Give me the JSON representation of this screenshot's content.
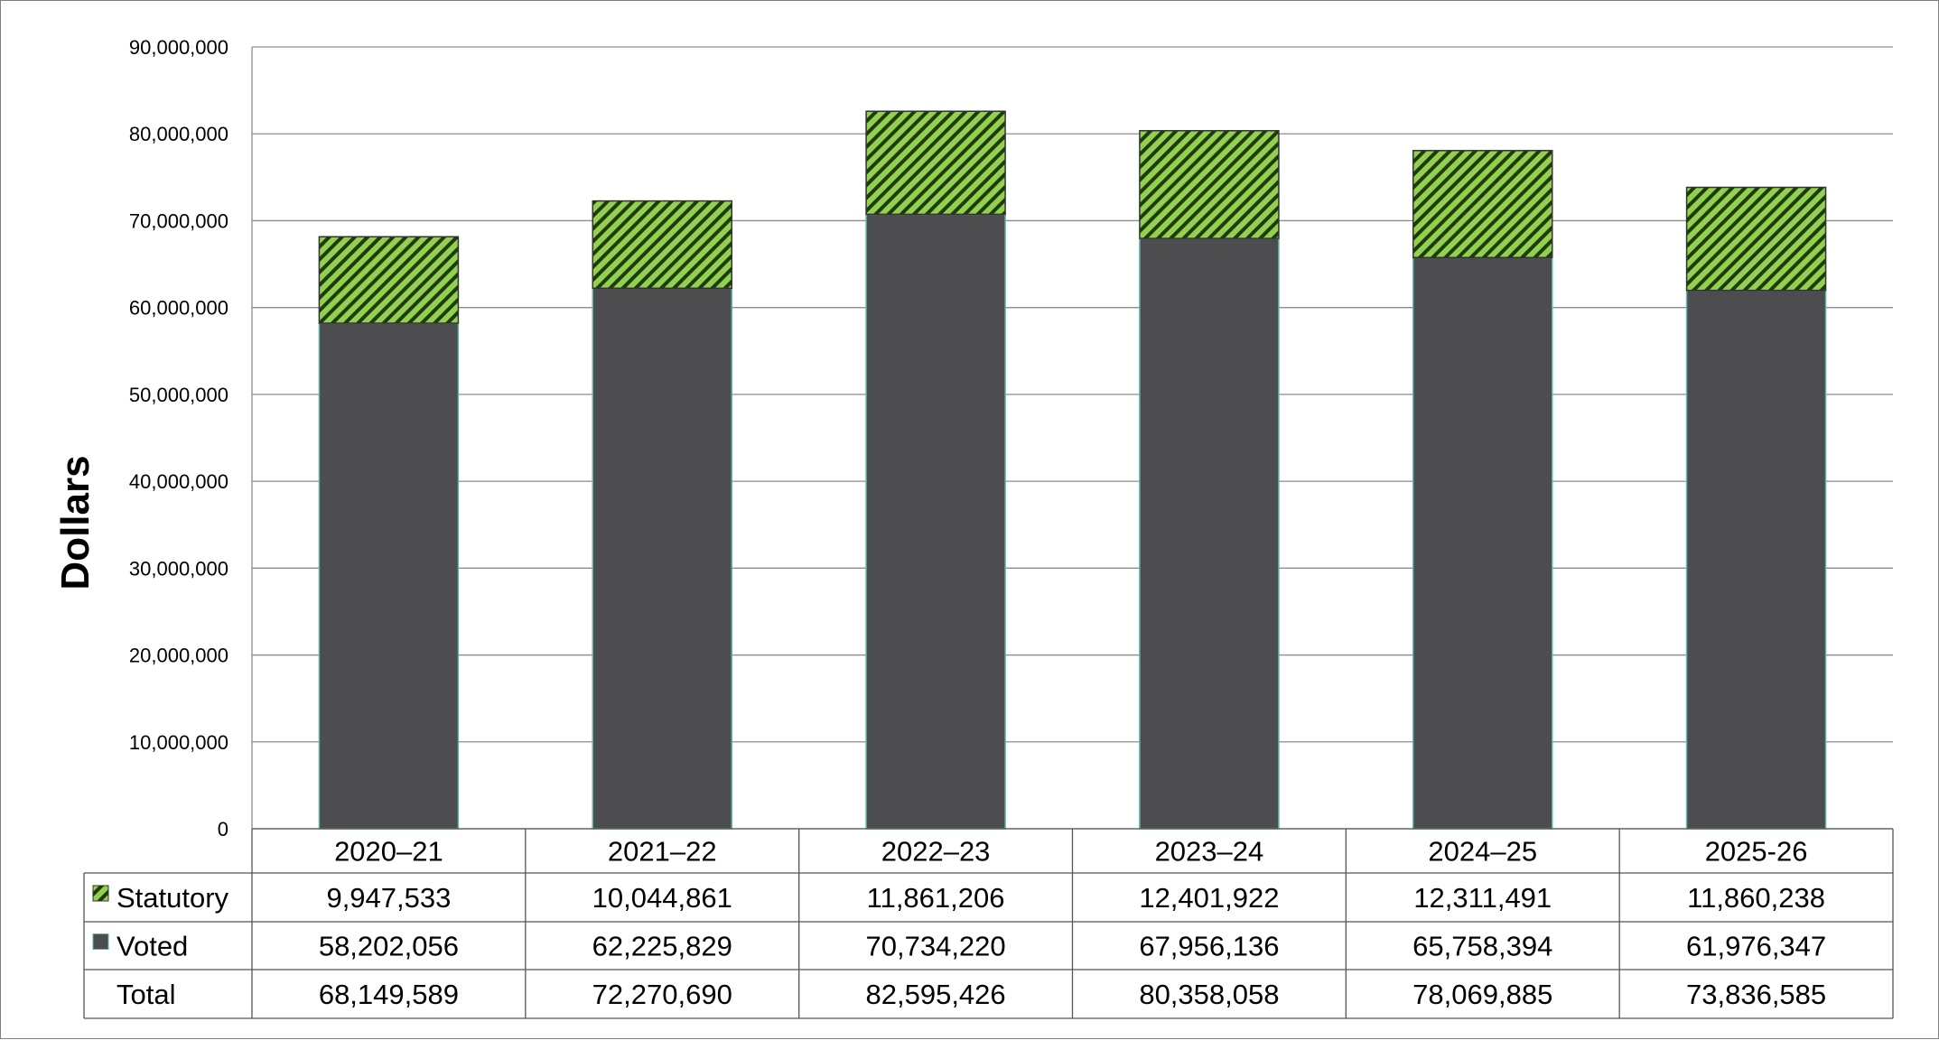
{
  "chart_data": {
    "type": "bar",
    "stacked": true,
    "categories": [
      "2020–21",
      "2021–22",
      "2022–23",
      "2023–24",
      "2024–25",
      "2025-26"
    ],
    "series": [
      {
        "name": "Voted",
        "values": [
          58202056,
          62225829,
          70734220,
          67956136,
          65758394,
          61976347
        ],
        "color": "#4d4d4f"
      },
      {
        "name": "Statutory",
        "values": [
          9947533,
          10044861,
          11861206,
          12401922,
          12311491,
          11860238
        ],
        "color": "#92d050"
      }
    ],
    "table": {
      "rows": [
        {
          "label": "Statutory",
          "values": [
            "9,947,533",
            "10,044,861",
            "11,861,206",
            "12,401,922",
            "12,311,491",
            "11,860,238"
          ]
        },
        {
          "label": "Voted",
          "values": [
            "58,202,056",
            "62,225,829",
            "70,734,220",
            "67,956,136",
            "65,758,394",
            "61,976,347"
          ]
        },
        {
          "label": "Total",
          "values": [
            "68,149,589",
            "72,270,690",
            "82,595,426",
            "80,358,058",
            "78,069,885",
            "73,836,585"
          ]
        }
      ]
    },
    "ylabel": "Dollars",
    "xlabel": "",
    "ylim": [
      0,
      90000000
    ],
    "yticks": [
      0,
      10000000,
      20000000,
      30000000,
      40000000,
      50000000,
      60000000,
      70000000,
      80000000,
      90000000
    ],
    "ytick_labels": [
      "0",
      "10,000,000",
      "20,000,000",
      "30,000,000",
      "40,000,000",
      "50,000,000",
      "60,000,000",
      "70,000,000",
      "80,000,000",
      "90,000,000"
    ],
    "grid": true,
    "legend": "data-table"
  }
}
